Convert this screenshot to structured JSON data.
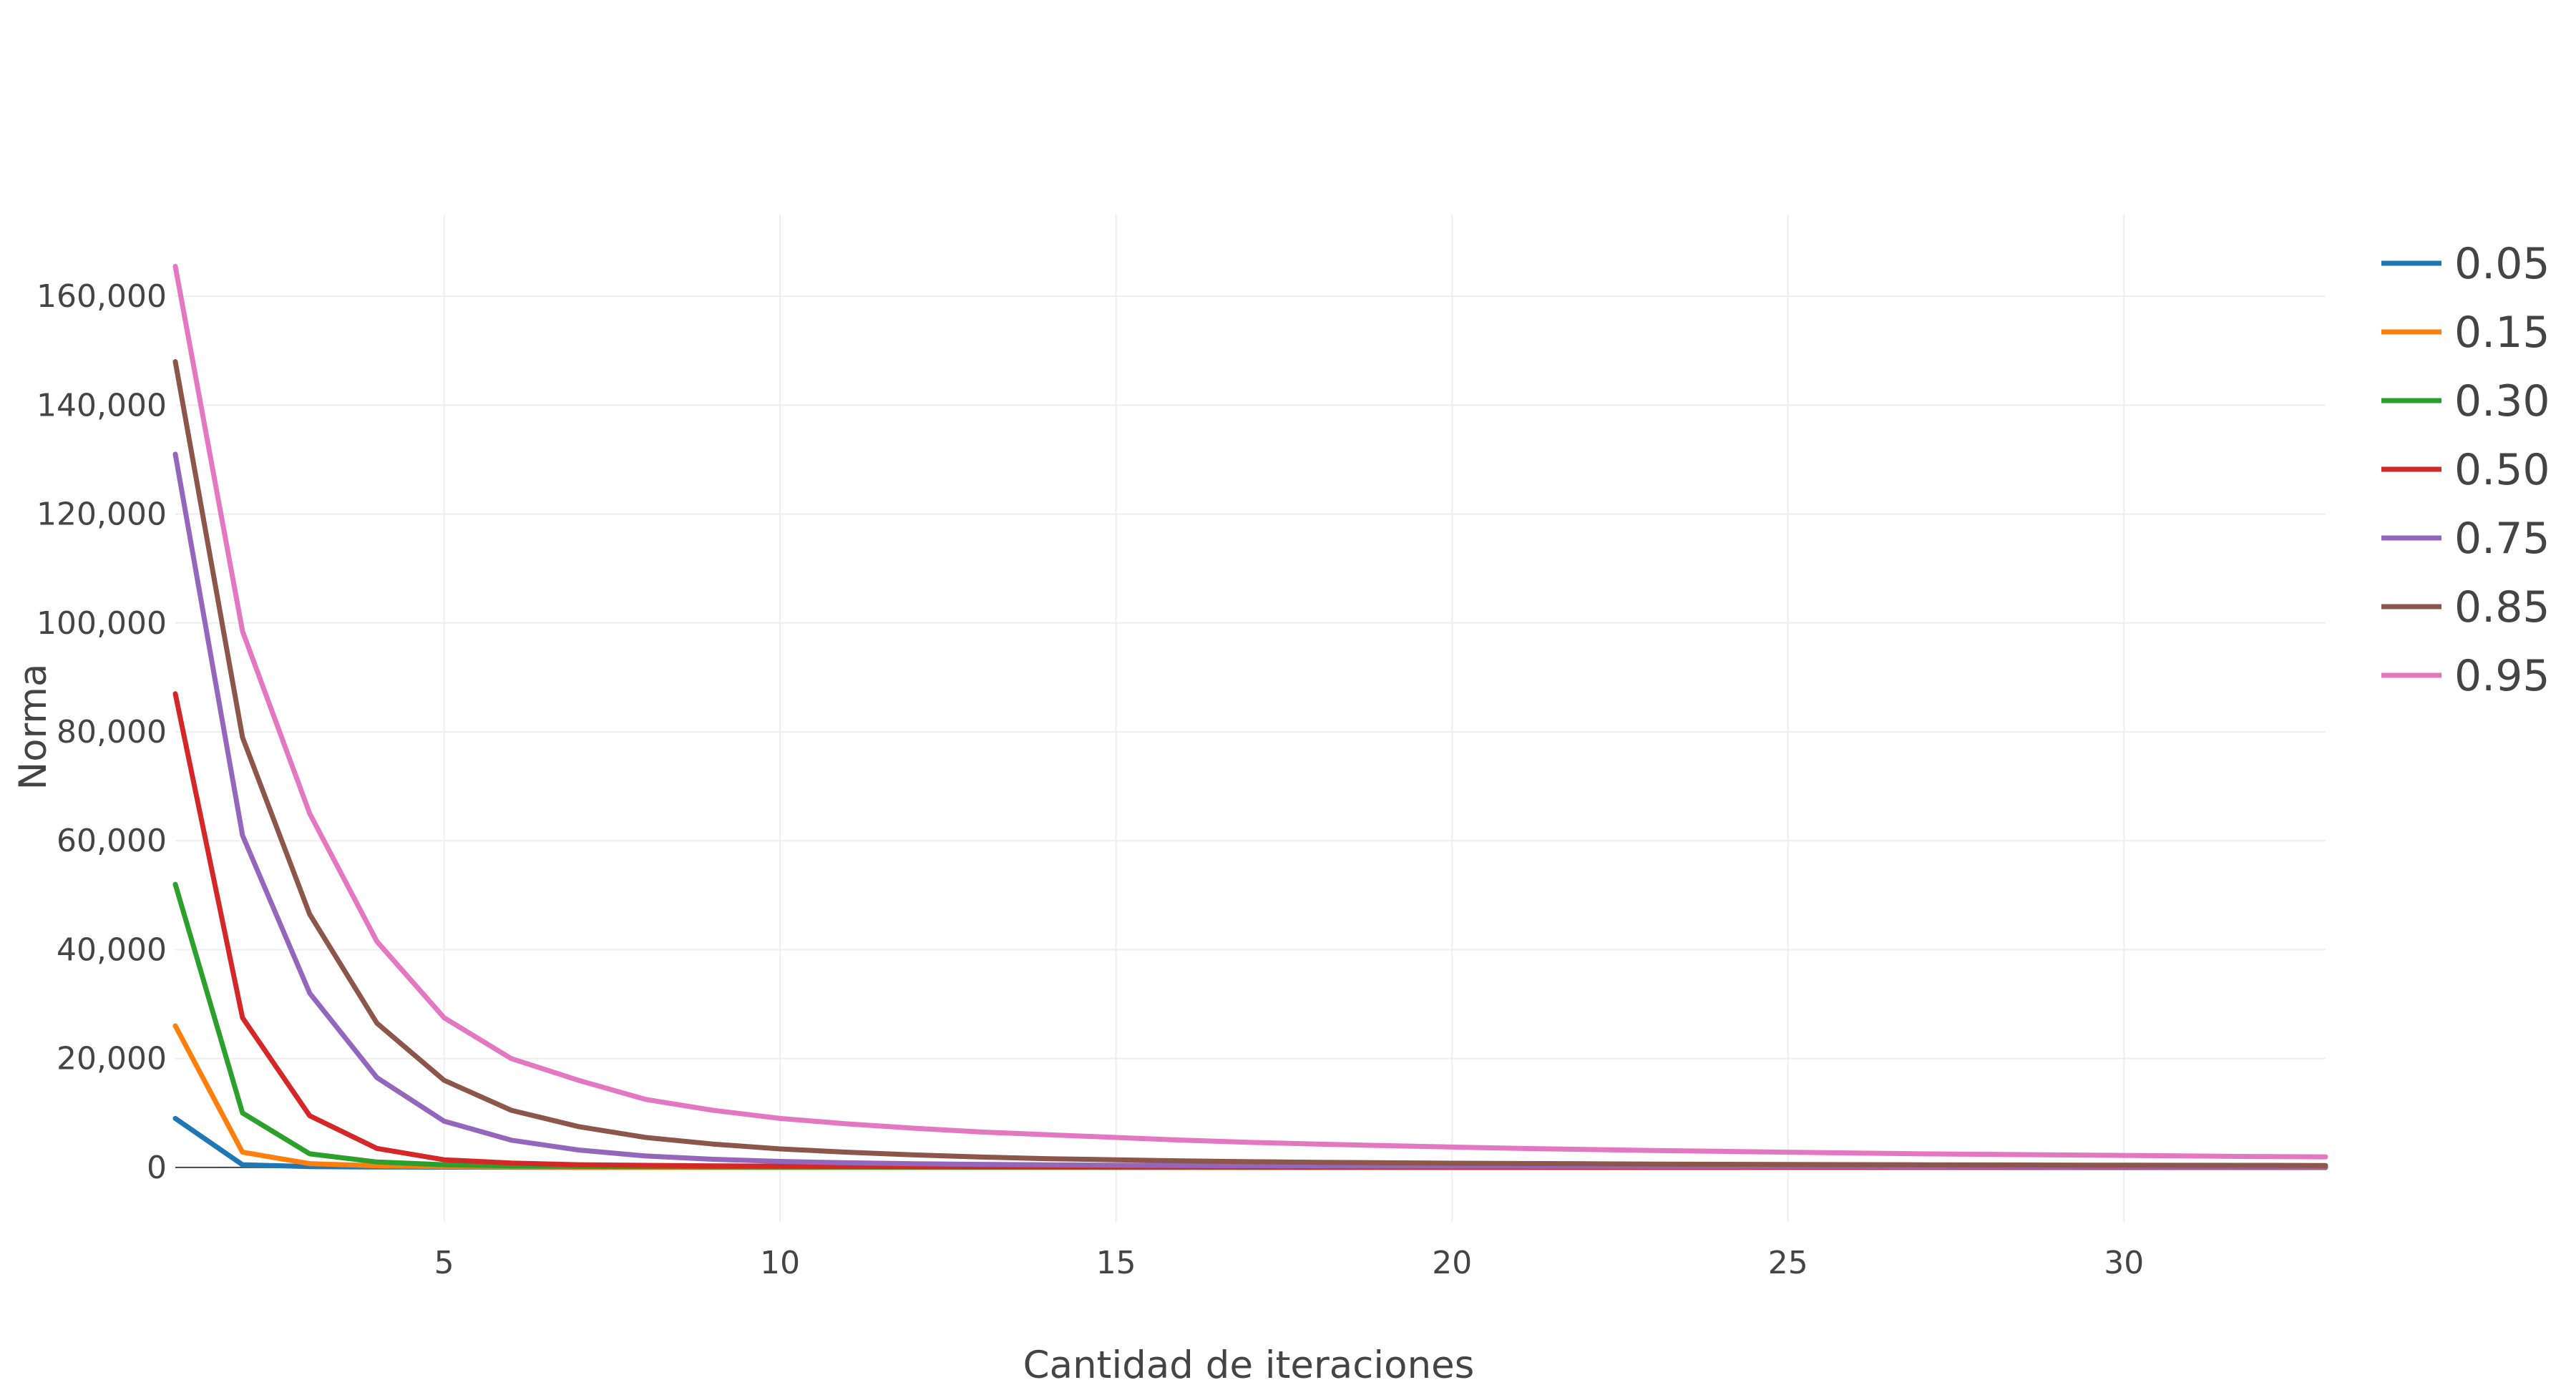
{
  "chart_data": {
    "type": "line",
    "title": "",
    "xlabel": "Cantidad de iteraciones",
    "ylabel": "Norma",
    "xlim": [
      1,
      33
    ],
    "ylim": [
      -10000,
      175000
    ],
    "grid": true,
    "legend_position": "top-right",
    "x_ticks": [
      {
        "value": 5,
        "label": "5"
      },
      {
        "value": 10,
        "label": "10"
      },
      {
        "value": 15,
        "label": "15"
      },
      {
        "value": 20,
        "label": "20"
      },
      {
        "value": 25,
        "label": "25"
      },
      {
        "value": 30,
        "label": "30"
      }
    ],
    "y_ticks": [
      {
        "value": 0,
        "label": "0"
      },
      {
        "value": 20000,
        "label": "20,000"
      },
      {
        "value": 40000,
        "label": "40,000"
      },
      {
        "value": 60000,
        "label": "60,000"
      },
      {
        "value": 80000,
        "label": "80,000"
      },
      {
        "value": 100000,
        "label": "100,000"
      },
      {
        "value": 120000,
        "label": "120,000"
      },
      {
        "value": 140000,
        "label": "140,000"
      },
      {
        "value": 160000,
        "label": "160,000"
      }
    ],
    "x": [
      1,
      2,
      3,
      4,
      5,
      6,
      7,
      8,
      9,
      10,
      11,
      12,
      13,
      14,
      15,
      16,
      17,
      18,
      19,
      20,
      21,
      22,
      23,
      24,
      25,
      26,
      27,
      28,
      29,
      30,
      31,
      32,
      33
    ],
    "series": [
      {
        "name": "0.05",
        "color": "#1f77b4",
        "values": [
          9000,
          500,
          150,
          80,
          50,
          35,
          25,
          20,
          15,
          12,
          10,
          8,
          7,
          6,
          5,
          4,
          4,
          3,
          3,
          3,
          2,
          2,
          2,
          2,
          2,
          2,
          1,
          1,
          1,
          1,
          1,
          1,
          1
        ]
      },
      {
        "name": "0.15",
        "color": "#ff7f0e",
        "values": [
          26000,
          2800,
          700,
          300,
          160,
          100,
          70,
          50,
          40,
          32,
          26,
          22,
          18,
          15,
          13,
          11,
          10,
          9,
          8,
          7,
          6,
          6,
          5,
          5,
          4,
          4,
          4,
          3,
          3,
          3,
          3,
          3,
          2
        ]
      },
      {
        "name": "0.30",
        "color": "#2ca02c",
        "values": [
          52000,
          10000,
          2500,
          1000,
          500,
          300,
          200,
          150,
          110,
          90,
          75,
          62,
          52,
          45,
          39,
          34,
          30,
          27,
          24,
          22,
          20,
          18,
          16,
          15,
          14,
          13,
          12,
          11,
          10,
          10,
          9,
          9,
          8
        ]
      },
      {
        "name": "0.50",
        "color": "#d62728",
        "values": [
          87000,
          27500,
          9500,
          3500,
          1400,
          800,
          500,
          380,
          290,
          230,
          190,
          160,
          135,
          115,
          100,
          88,
          78,
          70,
          63,
          57,
          52,
          47,
          43,
          40,
          37,
          34,
          32,
          30,
          28,
          26,
          25,
          23,
          22
        ]
      },
      {
        "name": "0.75",
        "color": "#9467bd",
        "values": [
          131000,
          61000,
          32000,
          16500,
          8500,
          5000,
          3200,
          2100,
          1500,
          1100,
          850,
          680,
          560,
          470,
          400,
          350,
          310,
          275,
          250,
          225,
          205,
          190,
          175,
          165,
          155,
          145,
          135,
          128,
          120,
          115,
          110,
          105,
          100
        ]
      },
      {
        "name": "0.85",
        "color": "#8c564b",
        "values": [
          148000,
          79000,
          46500,
          26500,
          16000,
          10500,
          7500,
          5500,
          4300,
          3400,
          2800,
          2300,
          1900,
          1600,
          1400,
          1200,
          1050,
          950,
          850,
          780,
          720,
          670,
          620,
          580,
          540,
          510,
          480,
          455,
          430,
          410,
          390,
          375,
          360
        ]
      },
      {
        "name": "0.95",
        "color": "#e377c2",
        "values": [
          165500,
          98500,
          65000,
          41500,
          27500,
          20000,
          16000,
          12500,
          10500,
          9000,
          8000,
          7200,
          6500,
          6000,
          5500,
          5000,
          4600,
          4300,
          4000,
          3750,
          3500,
          3300,
          3100,
          2950,
          2800,
          2650,
          2500,
          2400,
          2300,
          2200,
          2100,
          2000,
          1950
        ]
      }
    ]
  }
}
